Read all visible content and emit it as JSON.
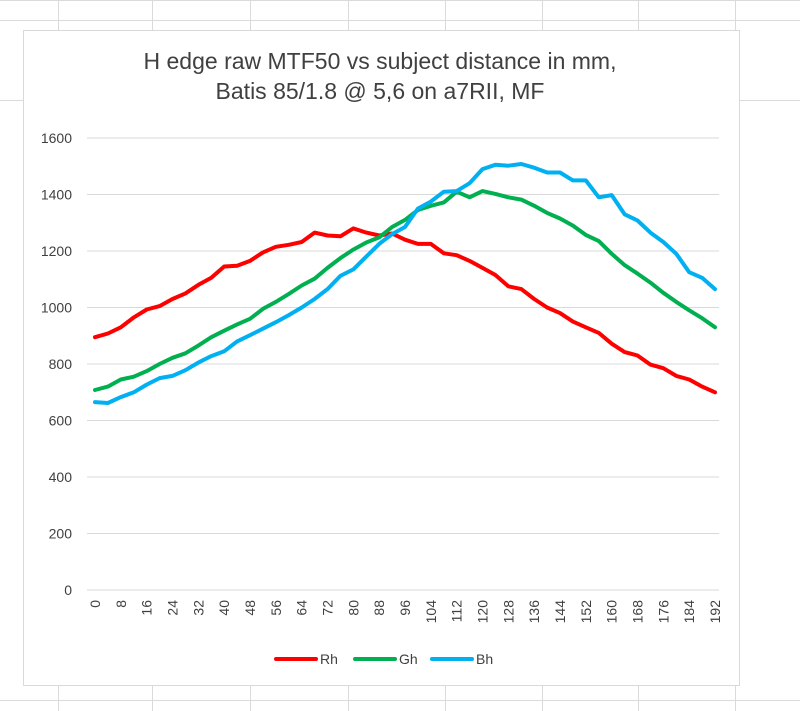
{
  "chart_data": {
    "type": "line",
    "title_lines": [
      "H edge raw MTF50 vs subject distance in mm,",
      "Batis 85/1.8 @ 5,6 on a7RII, MF"
    ],
    "xlabel": "",
    "ylabel": "",
    "ylim": [
      0,
      1600
    ],
    "yticks": [
      0,
      200,
      400,
      600,
      800,
      1000,
      1200,
      1400,
      1600
    ],
    "x": [
      0,
      4,
      8,
      12,
      16,
      20,
      24,
      28,
      32,
      36,
      40,
      44,
      48,
      52,
      56,
      60,
      64,
      68,
      72,
      76,
      80,
      84,
      88,
      92,
      96,
      100,
      104,
      108,
      112,
      116,
      120,
      124,
      128,
      132,
      136,
      140,
      144,
      148,
      152,
      156,
      160,
      164,
      168,
      172,
      176,
      180,
      184,
      188,
      192
    ],
    "xticks": [
      0,
      8,
      16,
      24,
      32,
      40,
      48,
      56,
      64,
      72,
      80,
      88,
      96,
      104,
      112,
      120,
      128,
      136,
      144,
      152,
      160,
      168,
      176,
      184,
      192
    ],
    "grid": "horizontal",
    "legend_position": "bottom",
    "series": [
      {
        "name": "Rh",
        "color": "#ff0000",
        "values": [
          895,
          908,
          930,
          965,
          993,
          1005,
          1030,
          1050,
          1080,
          1105,
          1145,
          1148,
          1165,
          1195,
          1215,
          1222,
          1232,
          1265,
          1255,
          1252,
          1280,
          1265,
          1255,
          1262,
          1240,
          1225,
          1225,
          1192,
          1185,
          1165,
          1140,
          1115,
          1075,
          1065,
          1030,
          1000,
          980,
          950,
          930,
          910,
          872,
          842,
          830,
          798,
          785,
          758,
          745,
          720,
          700
        ]
      },
      {
        "name": "Gh",
        "color": "#00b050",
        "values": [
          708,
          720,
          745,
          755,
          775,
          800,
          822,
          838,
          865,
          895,
          918,
          940,
          960,
          995,
          1020,
          1048,
          1078,
          1102,
          1140,
          1175,
          1205,
          1230,
          1248,
          1285,
          1310,
          1345,
          1360,
          1372,
          1410,
          1390,
          1412,
          1402,
          1390,
          1382,
          1360,
          1335,
          1315,
          1290,
          1257,
          1235,
          1190,
          1150,
          1120,
          1088,
          1052,
          1020,
          990,
          962,
          930
        ]
      },
      {
        "name": "Bh",
        "color": "#00b0f0",
        "values": [
          665,
          662,
          683,
          700,
          727,
          750,
          758,
          778,
          805,
          828,
          845,
          880,
          902,
          925,
          948,
          973,
          1000,
          1030,
          1065,
          1112,
          1135,
          1180,
          1225,
          1260,
          1285,
          1350,
          1375,
          1410,
          1412,
          1440,
          1490,
          1505,
          1502,
          1508,
          1495,
          1478,
          1478,
          1450,
          1450,
          1390,
          1398,
          1330,
          1308,
          1265,
          1232,
          1190,
          1125,
          1105,
          1065
        ]
      }
    ]
  }
}
